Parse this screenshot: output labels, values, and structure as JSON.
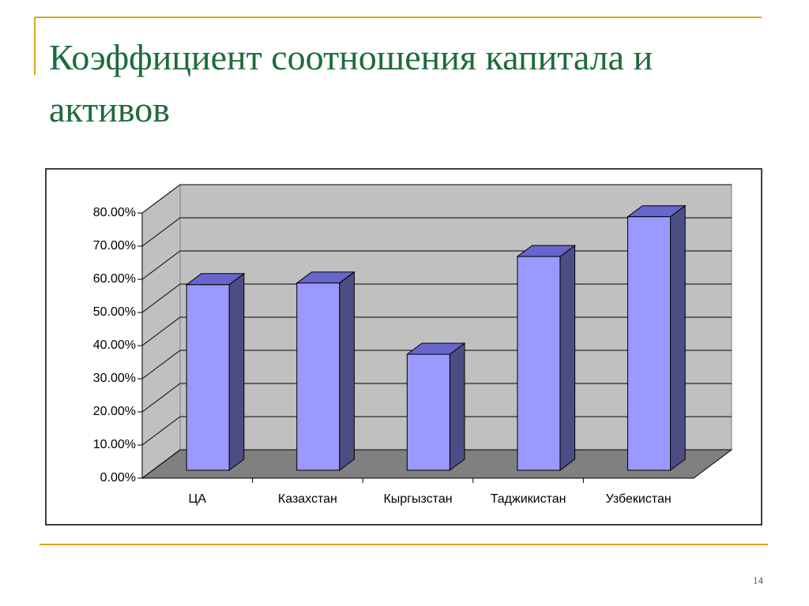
{
  "chart_data": {
    "type": "bar3d",
    "title": "Коэффициент соотношения капитала и активов",
    "categories": [
      "ЦА",
      "Казахстан",
      "Кыргызстан",
      "Таджикистан",
      "Узбекистан"
    ],
    "values": [
      56,
      56.5,
      35,
      64.5,
      76.5
    ],
    "color": "#9999ff",
    "ylim": [
      0,
      80
    ],
    "yticks": [
      {
        "value": 0,
        "label": "0.00%"
      },
      {
        "value": 10,
        "label": "10.00%"
      },
      {
        "value": 20,
        "label": "20.00%"
      },
      {
        "value": 30,
        "label": "30.00%"
      },
      {
        "value": 40,
        "label": "40.00%"
      },
      {
        "value": 50,
        "label": "50.00%"
      },
      {
        "value": 60,
        "label": "60.00%"
      },
      {
        "value": 70,
        "label": "70.00%"
      },
      {
        "value": 80,
        "label": "80.00%"
      }
    ],
    "grid": true
  },
  "page_number": "14"
}
